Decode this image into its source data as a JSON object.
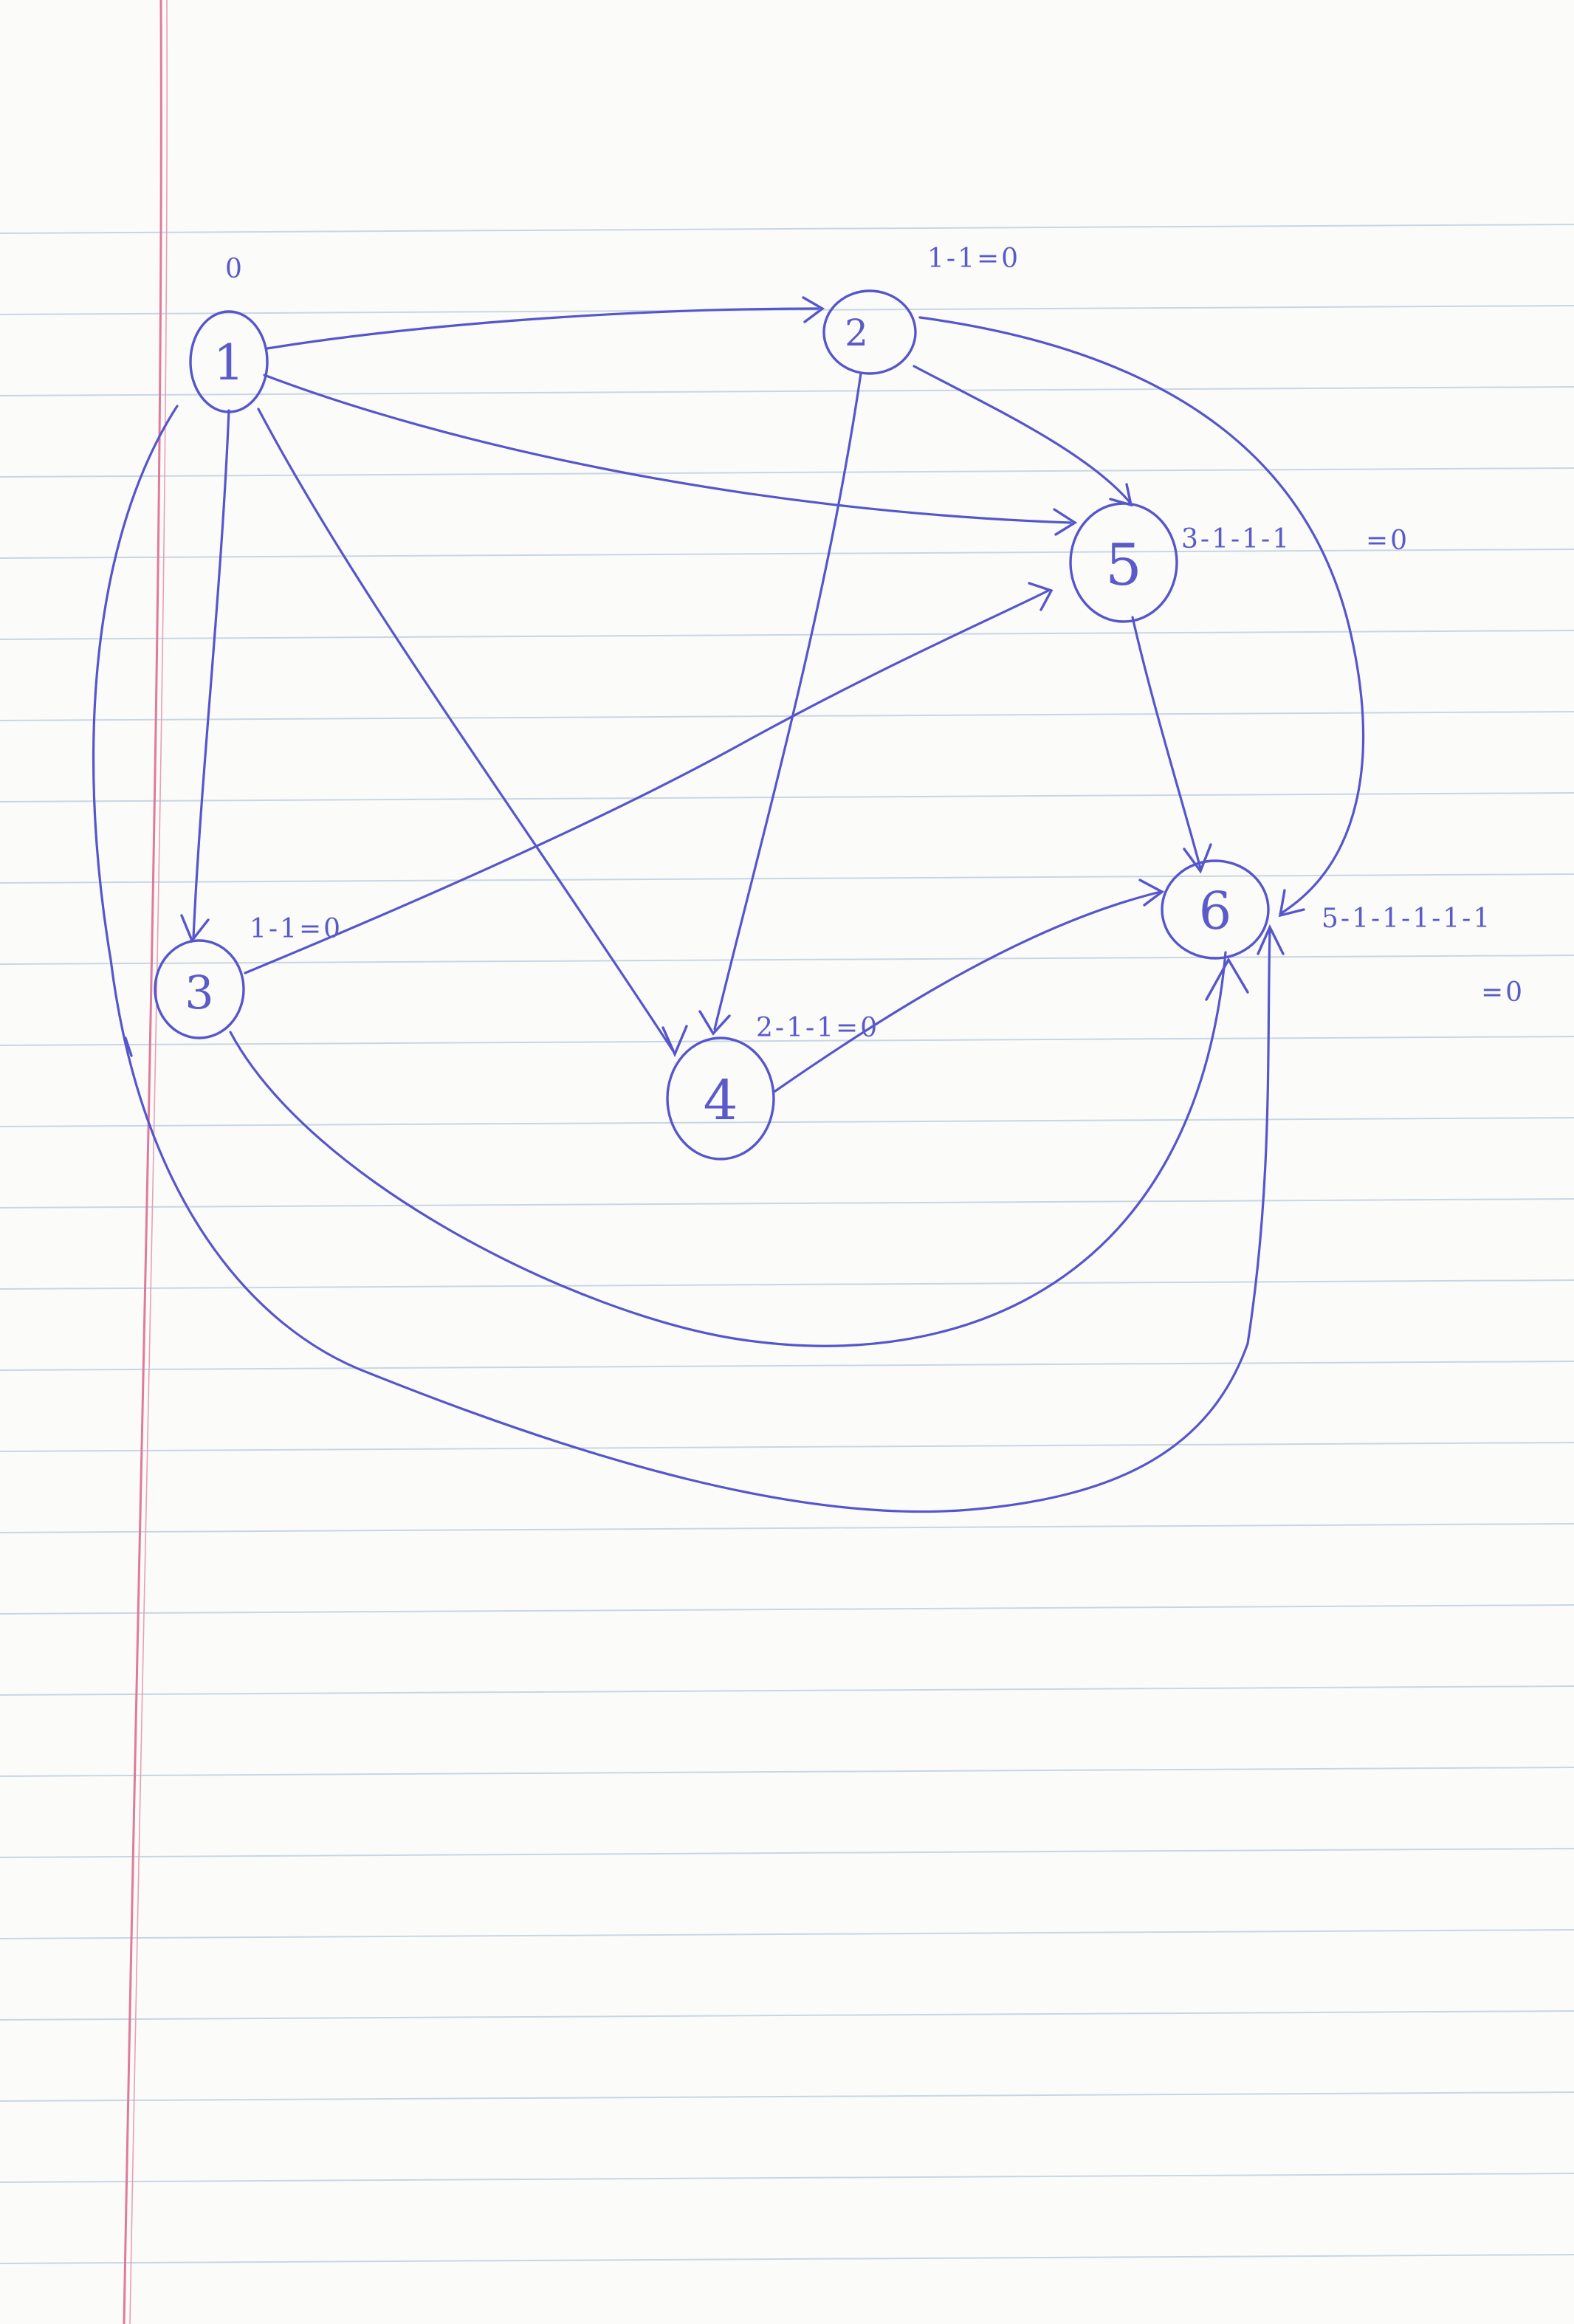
{
  "diagram": {
    "nodes": [
      {
        "id": "1",
        "label": "1",
        "annotation": "0"
      },
      {
        "id": "2",
        "label": "2",
        "annotation": "1-1=0"
      },
      {
        "id": "3",
        "label": "3",
        "annotation": "1-1=0"
      },
      {
        "id": "4",
        "label": "4",
        "annotation": "2-1-1=0"
      },
      {
        "id": "5",
        "label": "5",
        "annotation": "3-1-1-1",
        "annotation_extra": "=0"
      },
      {
        "id": "6",
        "label": "6",
        "annotation": "5-1-1-1-1-1",
        "annotation_extra": "=0"
      }
    ],
    "edges": [
      {
        "from": "1",
        "to": "2"
      },
      {
        "from": "1",
        "to": "3"
      },
      {
        "from": "1",
        "to": "4"
      },
      {
        "from": "1",
        "to": "5"
      },
      {
        "from": "1",
        "to": "6"
      },
      {
        "from": "2",
        "to": "4"
      },
      {
        "from": "2",
        "to": "5"
      },
      {
        "from": "2",
        "to": "6"
      },
      {
        "from": "3",
        "to": "5"
      },
      {
        "from": "3",
        "to": "6"
      },
      {
        "from": "4",
        "to": "6"
      },
      {
        "from": "5",
        "to": "6"
      }
    ],
    "colors": {
      "ink": "#5656cc",
      "paper": "#fbfbfa",
      "rule": "#c9d6e2",
      "margin": "#e07a9a"
    }
  }
}
